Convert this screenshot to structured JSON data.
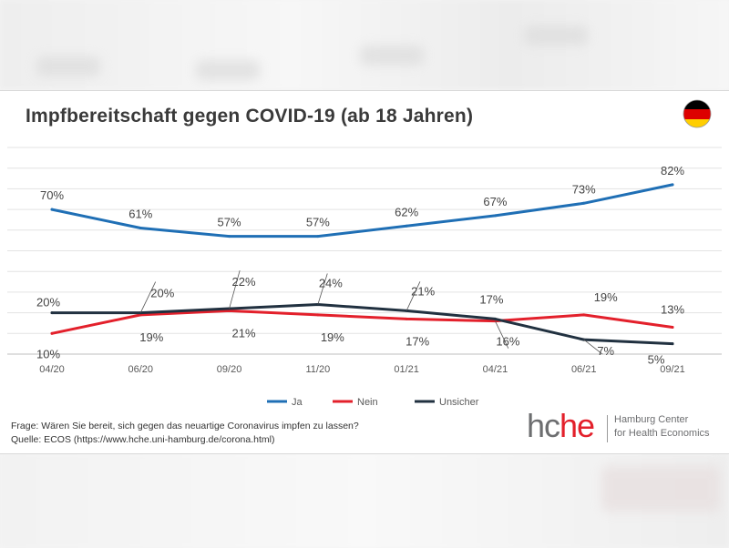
{
  "chart_data": {
    "type": "line",
    "title": "Impfbereitschaft gegen COVID-19 (ab 18 Jahren)",
    "categories": [
      "04/20",
      "06/20",
      "09/20",
      "11/20",
      "01/21",
      "04/21",
      "06/21",
      "09/21"
    ],
    "ylim": [
      0,
      100
    ],
    "grid": true,
    "legend_position": "bottom",
    "series": [
      {
        "name": "Ja",
        "color": "#1f6fb5",
        "values": [
          70,
          61,
          57,
          57,
          62,
          67,
          73,
          82
        ],
        "labels": [
          "70%",
          "61%",
          "57%",
          "57%",
          "62%",
          "67%",
          "73%",
          "82%"
        ]
      },
      {
        "name": "Nein",
        "color": "#e3202b",
        "values": [
          10,
          19,
          21,
          19,
          17,
          16,
          19,
          13
        ],
        "labels": [
          "10%",
          "19%",
          "21%",
          "19%",
          "17%",
          "16%",
          "19%",
          "13%"
        ]
      },
      {
        "name": "Unsicher",
        "color": "#213140",
        "values": [
          20,
          20,
          22,
          24,
          21,
          17,
          7,
          5
        ],
        "labels": [
          "20%",
          "20%",
          "22%",
          "24%",
          "21%",
          "17%",
          "7%",
          "5%"
        ]
      }
    ]
  },
  "footnote": {
    "question": "Frage: Wären Sie bereit, sich gegen das neuartige Coronavirus impfen zu lassen?",
    "source": "Quelle: ECOS (https://www.hche.uni-hamburg.de/corona.html)"
  },
  "logo": {
    "mark_hc": "hc",
    "mark_he": "he",
    "line1": "Hamburg Center",
    "line2": "for Health Economics"
  },
  "flag": {
    "country": "Germany",
    "colors": [
      "#000000",
      "#dd0000",
      "#ffce00"
    ]
  }
}
